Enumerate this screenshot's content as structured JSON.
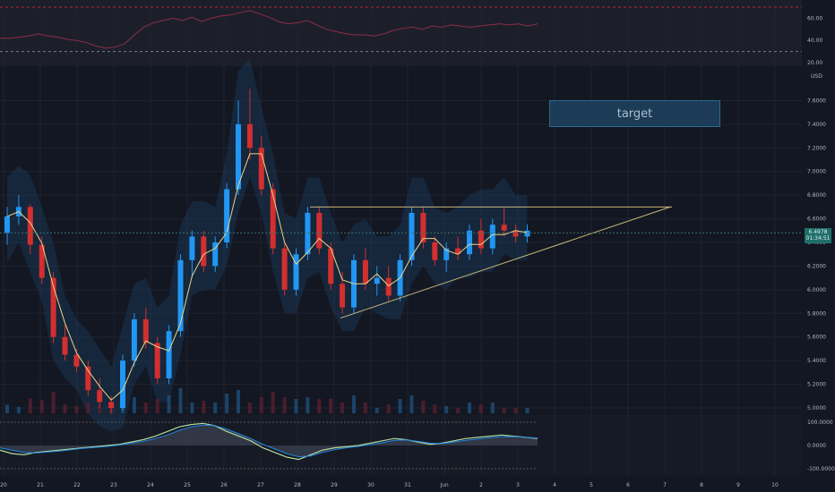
{
  "chart_data": [
    {
      "panel": "rsi",
      "type": "line",
      "y_ticks": [
        "60.00",
        "40.00",
        "20.00"
      ],
      "ylim": [
        20,
        70
      ],
      "values": [
        42,
        42,
        43,
        44,
        46,
        44,
        43,
        41,
        40,
        38,
        35,
        33,
        34,
        37,
        45,
        52,
        56,
        58,
        60,
        58,
        61,
        57,
        60,
        62,
        63,
        65,
        67,
        64,
        61,
        57,
        55,
        56,
        58,
        54,
        50,
        48,
        46,
        45,
        45,
        44,
        46,
        49,
        51,
        52,
        50,
        53,
        52,
        54,
        53,
        52,
        53,
        54,
        55,
        54,
        55,
        53,
        55
      ]
    },
    {
      "panel": "price",
      "type": "candlestick",
      "unit_label": "USD",
      "y_ticks": [
        "7.6000",
        "7.4000",
        "7.2000",
        "7.0000",
        "6.8000",
        "6.6000",
        "6.4000",
        "6.2000",
        "6.0000",
        "5.8000",
        "5.6000",
        "5.4000",
        "5.2000",
        "5.0000"
      ],
      "ylim": [
        5.0,
        7.8
      ],
      "x_ticks": [
        "20",
        "21",
        "22",
        "23",
        "24",
        "25",
        "26",
        "27",
        "28",
        "29",
        "30",
        "31",
        "Jun",
        "2",
        "3",
        "4",
        "5",
        "6",
        "7",
        "8",
        "9",
        "10"
      ],
      "last_price": "6.4978",
      "countdown": "01:34:51",
      "annotation": "target",
      "candles": [
        [
          6.48,
          6.7,
          6.38,
          6.62
        ],
        [
          6.62,
          6.8,
          6.55,
          6.7
        ],
        [
          6.7,
          6.72,
          6.3,
          6.38
        ],
        [
          6.38,
          6.45,
          6.05,
          6.1
        ],
        [
          6.1,
          6.15,
          5.55,
          5.6
        ],
        [
          5.6,
          5.7,
          5.4,
          5.45
        ],
        [
          5.45,
          5.5,
          5.3,
          5.35
        ],
        [
          5.35,
          5.4,
          5.1,
          5.15
        ],
        [
          5.15,
          5.25,
          5.0,
          5.05
        ],
        [
          5.05,
          5.1,
          4.95,
          5.0
        ],
        [
          5.0,
          5.45,
          4.98,
          5.4
        ],
        [
          5.4,
          5.8,
          5.35,
          5.75
        ],
        [
          5.75,
          5.85,
          5.5,
          5.55
        ],
        [
          5.55,
          5.6,
          5.2,
          5.25
        ],
        [
          5.25,
          5.7,
          5.2,
          5.65
        ],
        [
          5.65,
          6.3,
          5.6,
          6.25
        ],
        [
          6.25,
          6.5,
          6.1,
          6.45
        ],
        [
          6.45,
          6.5,
          6.15,
          6.2
        ],
        [
          6.2,
          6.45,
          6.15,
          6.4
        ],
        [
          6.4,
          6.9,
          6.35,
          6.85
        ],
        [
          6.85,
          7.6,
          6.8,
          7.4
        ],
        [
          7.4,
          7.7,
          7.1,
          7.2
        ],
        [
          7.2,
          7.3,
          6.8,
          6.85
        ],
        [
          6.85,
          6.9,
          6.3,
          6.35
        ],
        [
          6.35,
          6.4,
          5.95,
          6.0
        ],
        [
          6.0,
          6.35,
          5.95,
          6.3
        ],
        [
          6.3,
          6.7,
          6.25,
          6.65
        ],
        [
          6.65,
          6.7,
          6.3,
          6.35
        ],
        [
          6.35,
          6.4,
          6.0,
          6.05
        ],
        [
          6.05,
          6.15,
          5.8,
          5.85
        ],
        [
          5.85,
          6.3,
          5.8,
          6.25
        ],
        [
          6.25,
          6.35,
          6.0,
          6.05
        ],
        [
          6.05,
          6.2,
          5.95,
          6.1
        ],
        [
          6.1,
          6.2,
          5.9,
          5.95
        ],
        [
          5.95,
          6.3,
          5.9,
          6.25
        ],
        [
          6.25,
          6.7,
          6.2,
          6.65
        ],
        [
          6.65,
          6.7,
          6.35,
          6.4
        ],
        [
          6.4,
          6.45,
          6.2,
          6.25
        ],
        [
          6.25,
          6.4,
          6.15,
          6.35
        ],
        [
          6.35,
          6.45,
          6.25,
          6.3
        ],
        [
          6.3,
          6.55,
          6.25,
          6.5
        ],
        [
          6.5,
          6.6,
          6.3,
          6.35
        ],
        [
          6.35,
          6.6,
          6.3,
          6.55
        ],
        [
          6.55,
          6.7,
          6.45,
          6.5
        ],
        [
          6.5,
          6.55,
          6.4,
          6.45
        ],
        [
          6.45,
          6.55,
          6.4,
          6.5
        ]
      ]
    },
    {
      "panel": "oscillator",
      "type": "area",
      "y_ticks": [
        "100.0000",
        "0.0000",
        "-100.0000"
      ],
      "ylim": [
        -100,
        100
      ],
      "fast": [
        -20,
        -35,
        -40,
        -30,
        -25,
        -20,
        -15,
        -10,
        -5,
        0,
        5,
        15,
        25,
        40,
        60,
        80,
        90,
        95,
        85,
        60,
        40,
        20,
        -10,
        -30,
        -50,
        -60,
        -40,
        -20,
        -10,
        -5,
        0,
        10,
        20,
        30,
        25,
        15,
        5,
        10,
        20,
        30,
        35,
        40,
        45,
        40,
        35,
        30
      ],
      "slow": [
        -10,
        -20,
        -30,
        -32,
        -28,
        -24,
        -18,
        -12,
        -8,
        -4,
        2,
        10,
        18,
        30,
        45,
        65,
        80,
        88,
        85,
        70,
        50,
        30,
        5,
        -15,
        -35,
        -48,
        -45,
        -30,
        -18,
        -10,
        -4,
        4,
        12,
        22,
        24,
        18,
        10,
        8,
        15,
        22,
        28,
        33,
        38,
        38,
        35,
        32
      ]
    }
  ]
}
